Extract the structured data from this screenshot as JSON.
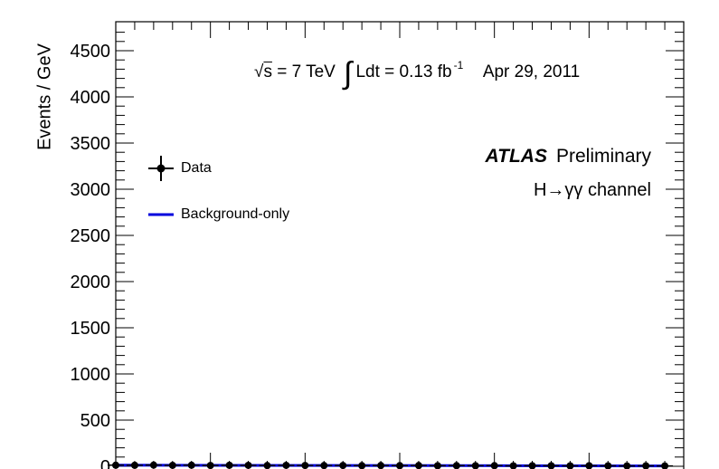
{
  "chart_data": {
    "type": "scatter",
    "title": "",
    "xlabel": "",
    "ylabel": "Events / GeV",
    "ylim": [
      0,
      4750
    ],
    "yticks": [
      "0",
      "500",
      "1000",
      "1500",
      "2000",
      "2500",
      "3000",
      "3500",
      "4000",
      "4500"
    ],
    "grid": false,
    "legend_position": "top-left",
    "series": [
      {
        "name": "Data",
        "marker": "filled-circle-with-error-bars",
        "color": "#000000",
        "x": [
          100,
          102,
          104,
          106,
          108,
          110,
          112,
          114,
          116,
          118,
          120,
          122,
          124,
          126,
          128,
          130,
          132,
          134,
          136,
          138,
          140,
          142,
          144,
          146,
          148,
          150,
          152,
          154,
          156,
          158
        ],
        "y": [
          12,
          11,
          13,
          10,
          12,
          9,
          11,
          10,
          8,
          10,
          9,
          8,
          9,
          7,
          8,
          7,
          8,
          6,
          7,
          6,
          7,
          5,
          6,
          6,
          5,
          6,
          5,
          4,
          5,
          4
        ]
      },
      {
        "name": "Background-only",
        "line": "solid",
        "color": "#0000dd",
        "x": [
          100,
          158
        ],
        "y": [
          12,
          4
        ]
      }
    ],
    "xrange": [
      100,
      160
    ],
    "annotations": {
      "sqrt_s_label": "s",
      "energy": "= 7 TeV",
      "lumi": "Ldt = 0.13 fb",
      "lumi_exponent": "-1",
      "date": "Apr 29, 2011",
      "experiment": "ATLAS",
      "status": "Preliminary",
      "channel": "H→γγ channel"
    }
  }
}
